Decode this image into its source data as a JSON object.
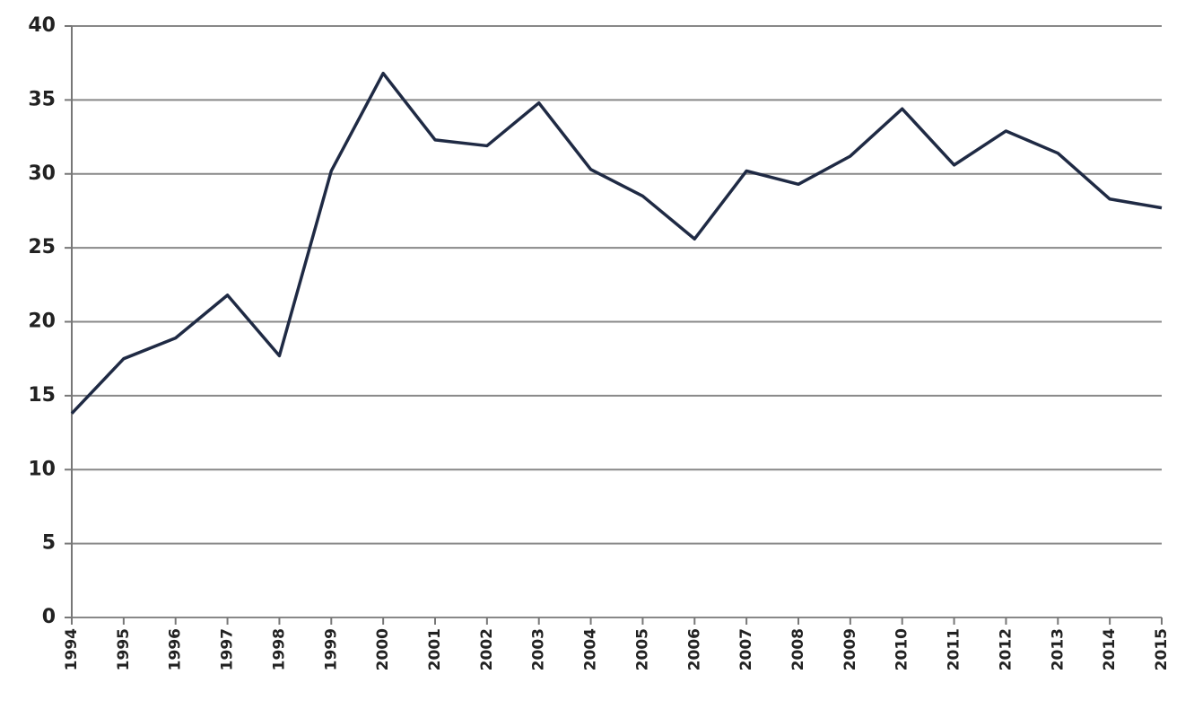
{
  "chart_data": {
    "type": "line",
    "categories": [
      "1994",
      "1995",
      "1996",
      "1997",
      "1998",
      "1999",
      "2000",
      "2001",
      "2002",
      "2003",
      "2004",
      "2005",
      "2006",
      "2007",
      "2008",
      "2009",
      "2010",
      "2011",
      "2012",
      "2013",
      "2014",
      "2015"
    ],
    "values": [
      13.8,
      17.5,
      18.9,
      21.8,
      17.7,
      30.2,
      36.8,
      32.3,
      31.9,
      34.8,
      30.3,
      28.5,
      25.6,
      30.2,
      29.3,
      31.2,
      34.4,
      30.6,
      32.9,
      31.4,
      28.3,
      27.7
    ],
    "color": "#1f2a44",
    "ylim": [
      0,
      40
    ],
    "yticks": [
      0,
      5,
      10,
      15,
      20,
      25,
      30,
      35,
      40
    ],
    "grid": true
  }
}
